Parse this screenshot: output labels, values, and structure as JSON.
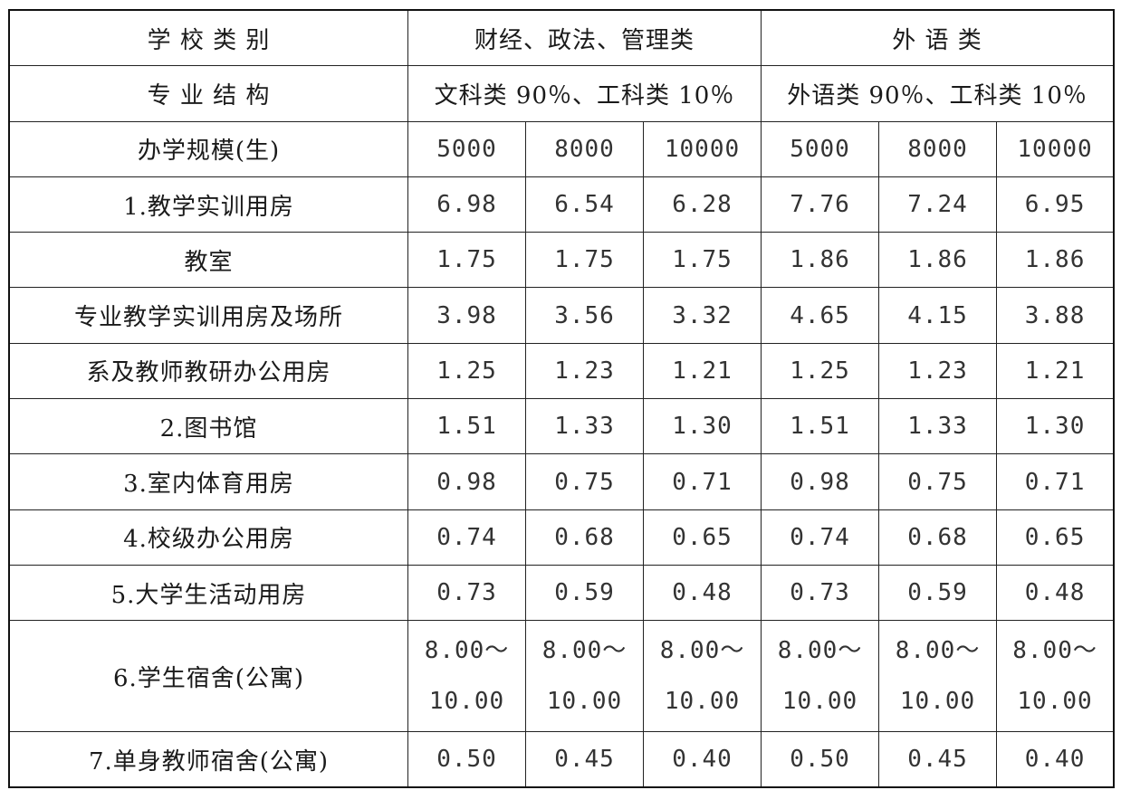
{
  "header": {
    "school_category_label": "学 校 类 别",
    "category_a": "财经、政法、管理类",
    "category_b": "外 语 类",
    "major_structure_label": "专 业 结 构",
    "major_a": "文科类 90％、工科类 10％",
    "major_b": "外语类 90％、工科类 10％",
    "scale_label": "办学规模(生)",
    "scales": [
      "5000",
      "8000",
      "10000",
      "5000",
      "8000",
      "10000"
    ]
  },
  "rows": [
    {
      "label": "1.教学实训用房",
      "values": [
        "6.98",
        "6.54",
        "6.28",
        "7.76",
        "7.24",
        "6.95"
      ]
    },
    {
      "label": "教室",
      "values": [
        "1.75",
        "1.75",
        "1.75",
        "1.86",
        "1.86",
        "1.86"
      ]
    },
    {
      "label": "专业教学实训用房及场所",
      "values": [
        "3.98",
        "3.56",
        "3.32",
        "4.65",
        "4.15",
        "3.88"
      ]
    },
    {
      "label": "系及教师教研办公用房",
      "values": [
        "1.25",
        "1.23",
        "1.21",
        "1.25",
        "1.23",
        "1.21"
      ]
    },
    {
      "label": "2.图书馆",
      "values": [
        "1.51",
        "1.33",
        "1.30",
        "1.51",
        "1.33",
        "1.30"
      ]
    },
    {
      "label": "3.室内体育用房",
      "values": [
        "0.98",
        "0.75",
        "0.71",
        "0.98",
        "0.75",
        "0.71"
      ]
    },
    {
      "label": "4.校级办公用房",
      "values": [
        "0.74",
        "0.68",
        "0.65",
        "0.74",
        "0.68",
        "0.65"
      ]
    },
    {
      "label": "5.大学生活动用房",
      "values": [
        "0.73",
        "0.59",
        "0.48",
        "0.73",
        "0.59",
        "0.48"
      ]
    },
    {
      "label": "6.学生宿舍(公寓)",
      "values_top": [
        "8.00～",
        "8.00～",
        "8.00～",
        "8.00～",
        "8.00～",
        "8.00～"
      ],
      "values_bottom": [
        "10.00",
        "10.00",
        "10.00",
        "10.00",
        "10.00",
        "10.00"
      ]
    },
    {
      "label": "7.单身教师宿舍(公寓)",
      "values": [
        "0.50",
        "0.45",
        "0.40",
        "0.50",
        "0.45",
        "0.40"
      ]
    }
  ]
}
